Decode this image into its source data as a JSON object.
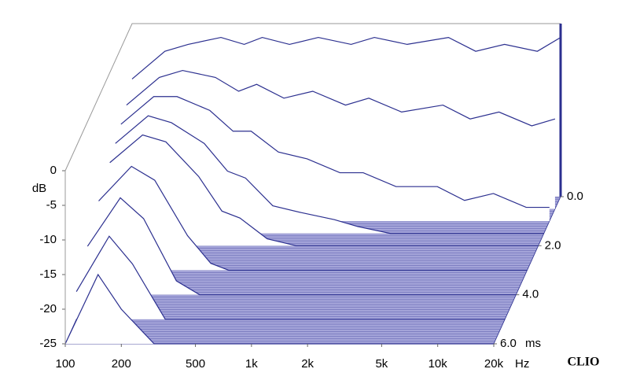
{
  "chart_data": {
    "type": "waterfall",
    "y_label": "dB",
    "x_unit": "Hz",
    "z_unit": "ms",
    "brand": "CLIO",
    "x": [
      100,
      150,
      200,
      300,
      400,
      500,
      700,
      1000,
      1500,
      2000,
      3000,
      5000,
      7000,
      10000,
      15000,
      20000
    ],
    "xlim": [
      100,
      20000
    ],
    "log_x": true,
    "xticks": [
      100,
      200,
      500,
      {
        "value": 1000,
        "label": "1k"
      },
      {
        "value": 2000,
        "label": "2k"
      },
      {
        "value": 5000,
        "label": "5k"
      },
      {
        "value": 10000,
        "label": "10k"
      },
      {
        "value": 20000,
        "label": "20k"
      }
    ],
    "ylim": [
      -25,
      0
    ],
    "yticks": [
      0,
      -5,
      -10,
      -15,
      -20,
      -25
    ],
    "zlim": [
      0,
      6
    ],
    "zticks": [
      {
        "value": 0,
        "label": "0.0"
      },
      {
        "value": 2,
        "label": "2.0"
      },
      {
        "value": 4,
        "label": "4.0"
      },
      {
        "value": 6,
        "label": "6.0"
      }
    ],
    "color": "#2b2f8f",
    "floor_color": "#a4a4d9",
    "slices": [
      {
        "t": 0,
        "values": [
          -8,
          -4,
          -3,
          -2,
          -3,
          -2,
          -3,
          -2,
          -3,
          -2,
          -3,
          -2,
          -4,
          -3,
          -4,
          -2
        ]
      },
      {
        "t": 0.5,
        "values": [
          -10,
          -6,
          -5,
          -6,
          -8,
          -7,
          -9,
          -8,
          -10,
          -9,
          -11,
          -10,
          -12,
          -11,
          -13,
          -12
        ]
      },
      {
        "t": 1,
        "values": [
          -11,
          -7,
          -7,
          -9,
          -12,
          -12,
          -15,
          -16,
          -18,
          -18,
          -20,
          -20,
          -22,
          -21,
          -23,
          -23
        ]
      },
      {
        "t": 1.5,
        "values": [
          -12,
          -8,
          -9,
          -12,
          -16,
          -17,
          -21,
          -22,
          -23,
          -24,
          -25,
          -25,
          -25,
          -25,
          -25,
          -25
        ]
      },
      {
        "t": 2,
        "values": [
          -13,
          -9,
          -10,
          -15,
          -20,
          -21,
          -24,
          -25,
          -25,
          -25,
          -25,
          -25,
          -25,
          -25,
          -25,
          -25
        ]
      },
      {
        "t": 3,
        "values": [
          -15,
          -10,
          -12,
          -20,
          -24,
          -25,
          -25,
          -25,
          -25,
          -25,
          -25,
          -25,
          -25,
          -25,
          -25,
          -25
        ]
      },
      {
        "t": 4,
        "values": [
          -18,
          -11,
          -14,
          -23,
          -25,
          -25,
          -25,
          -25,
          -25,
          -25,
          -25,
          -25,
          -25,
          -25,
          -25,
          -25
        ]
      },
      {
        "t": 5,
        "values": [
          -21,
          -13,
          -17,
          -25,
          -25,
          -25,
          -25,
          -25,
          -25,
          -25,
          -25,
          -25,
          -25,
          -25,
          -25,
          -25
        ]
      },
      {
        "t": 6,
        "values": [
          -25,
          -15,
          -20,
          -25,
          -25,
          -25,
          -25,
          -25,
          -25,
          -25,
          -25,
          -25,
          -25,
          -25,
          -25,
          -25
        ]
      }
    ]
  }
}
